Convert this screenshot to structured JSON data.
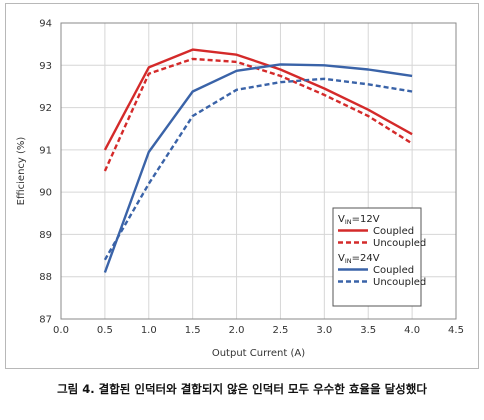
{
  "caption": "그림 4. 결합된 인덕터와 결합되지 않은 인덕터 모두 우수한 효율을 달성했다",
  "chart_data": {
    "type": "line",
    "title": "",
    "xlabel": "Output Current (A)",
    "ylabel": "Efficiency (%)",
    "xlim": [
      0,
      4.5
    ],
    "ylim": [
      87,
      94
    ],
    "x_ticks": [
      "0.0",
      "0.5",
      "1.0",
      "1.5",
      "2.0",
      "2.5",
      "3.0",
      "3.5",
      "4.0",
      "4.5"
    ],
    "y_ticks": [
      "87",
      "88",
      "89",
      "90",
      "91",
      "92",
      "93",
      "94"
    ],
    "grid": true,
    "legend_position": "right-lower",
    "legend_groups": [
      {
        "title_main": "V",
        "title_sub": "IN",
        "title_rest": "=12V",
        "series_indices": [
          0,
          1
        ]
      },
      {
        "title_main": "V",
        "title_sub": "IN",
        "title_rest": "=24V",
        "series_indices": [
          2,
          3
        ]
      }
    ],
    "series": [
      {
        "name": "Coupled",
        "color": "#d42a2a",
        "dash": "solid",
        "x": [
          0.5,
          1.0,
          1.5,
          2.0,
          2.5,
          3.0,
          3.5,
          4.0
        ],
        "y": [
          91.0,
          92.95,
          93.37,
          93.25,
          92.9,
          92.45,
          91.95,
          91.37
        ]
      },
      {
        "name": "Uncoupled",
        "color": "#d42a2a",
        "dash": "dashed",
        "x": [
          0.5,
          1.0,
          1.5,
          2.0,
          2.5,
          3.0,
          3.5,
          4.0
        ],
        "y": [
          90.5,
          92.8,
          93.15,
          93.08,
          92.75,
          92.3,
          91.8,
          91.15
        ]
      },
      {
        "name": "Coupled",
        "color": "#3a63a8",
        "dash": "solid",
        "x": [
          0.5,
          1.0,
          1.5,
          2.0,
          2.5,
          3.0,
          3.5,
          4.0
        ],
        "y": [
          88.1,
          90.95,
          92.38,
          92.87,
          93.02,
          93.0,
          92.9,
          92.75
        ]
      },
      {
        "name": "Uncoupled",
        "color": "#3a63a8",
        "dash": "dashed",
        "x": [
          0.5,
          1.0,
          1.5,
          2.0,
          2.5,
          3.0,
          3.5,
          4.0
        ],
        "y": [
          88.4,
          90.2,
          91.8,
          92.42,
          92.6,
          92.68,
          92.55,
          92.38
        ]
      }
    ]
  }
}
